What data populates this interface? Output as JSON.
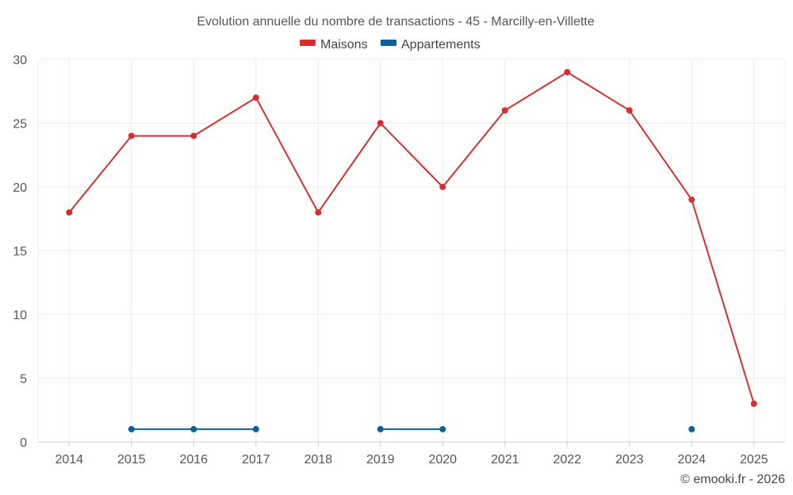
{
  "chart_data": {
    "type": "line",
    "title": "Evolution annuelle du nombre de transactions - 45 - Marcilly-en-Villette",
    "x": [
      "2014",
      "2015",
      "2016",
      "2017",
      "2018",
      "2019",
      "2020",
      "2021",
      "2022",
      "2023",
      "2024",
      "2025"
    ],
    "ylim": [
      0,
      30
    ],
    "yticks": [
      0,
      5,
      10,
      15,
      20,
      25,
      30
    ],
    "grid": true,
    "legend_position": "top-center",
    "series": [
      {
        "name": "Maisons",
        "color": "#d32f2f",
        "values": [
          18,
          24,
          24,
          27,
          18,
          25,
          20,
          26,
          29,
          26,
          19,
          3
        ]
      },
      {
        "name": "Appartements",
        "color": "#0a6199",
        "values": [
          null,
          1,
          1,
          1,
          null,
          1,
          1,
          null,
          null,
          null,
          1,
          null
        ]
      }
    ]
  },
  "credit": "© emooki.fr - 2026"
}
